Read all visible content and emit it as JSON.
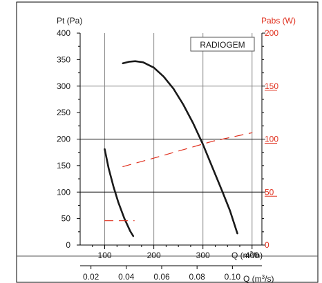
{
  "chart_data": {
    "type": "line",
    "title": "",
    "legend_box": "RADIOGEM",
    "left_axis": {
      "label": "Pt (Pa)",
      "ylim": [
        0,
        400
      ],
      "ticks": [
        "0",
        "50",
        "100",
        "150",
        "200",
        "250",
        "300",
        "350",
        "400"
      ]
    },
    "right_axis": {
      "label": "Pabs (W)",
      "ylim": [
        0,
        200
      ],
      "ticks": [
        "0",
        "50",
        "100",
        "150",
        "200"
      ]
    },
    "x_axis_primary": {
      "label_prefix": "Q (m",
      "label_sup": "3",
      "label_suffix": "/h)",
      "xlim": [
        50,
        420
      ],
      "ticks": [
        100,
        200,
        300,
        400
      ],
      "tick_labels": [
        "100",
        "200",
        "300",
        "400"
      ]
    },
    "x_axis_secondary": {
      "label_prefix": "Q (m",
      "label_sup": "3",
      "label_suffix": "/s)",
      "ticks": [
        0.02,
        0.04,
        0.06,
        0.08,
        0.1
      ],
      "tick_labels": [
        "0.02",
        "0.04",
        "0.06",
        "0.08",
        "0.10"
      ]
    },
    "grid": true,
    "series": [
      {
        "axis": "left",
        "style": "solid",
        "color": "#1a1a1a",
        "points": [
          [
            137,
            343
          ],
          [
            150,
            346
          ],
          [
            162,
            347
          ],
          [
            178,
            345
          ],
          [
            200,
            335
          ],
          [
            220,
            318
          ],
          [
            240,
            295
          ],
          [
            260,
            265
          ],
          [
            280,
            230
          ],
          [
            300,
            190
          ],
          [
            320,
            145
          ],
          [
            340,
            100
          ],
          [
            355,
            65
          ],
          [
            370,
            22
          ]
        ]
      },
      {
        "axis": "left",
        "style": "solid",
        "color": "#1a1a1a",
        "points": [
          [
            100,
            181
          ],
          [
            108,
            145
          ],
          [
            118,
            110
          ],
          [
            128,
            80
          ],
          [
            140,
            50
          ],
          [
            152,
            26
          ],
          [
            158,
            17
          ]
        ]
      },
      {
        "axis": "right",
        "style": "dashed",
        "color": "#e0301e",
        "points": [
          [
            137,
            74
          ],
          [
            200,
            82
          ],
          [
            260,
            90
          ],
          [
            320,
            98
          ],
          [
            400,
            106
          ]
        ]
      },
      {
        "axis": "right",
        "style": "dashed",
        "color": "#e0301e",
        "points": [
          [
            100,
            23
          ],
          [
            160,
            23
          ]
        ]
      }
    ]
  },
  "colors": {
    "left_axis": "#1a1a1a",
    "right_axis": "#e0301e",
    "grid": "#8a8a8a",
    "grid_major": "#000000"
  }
}
